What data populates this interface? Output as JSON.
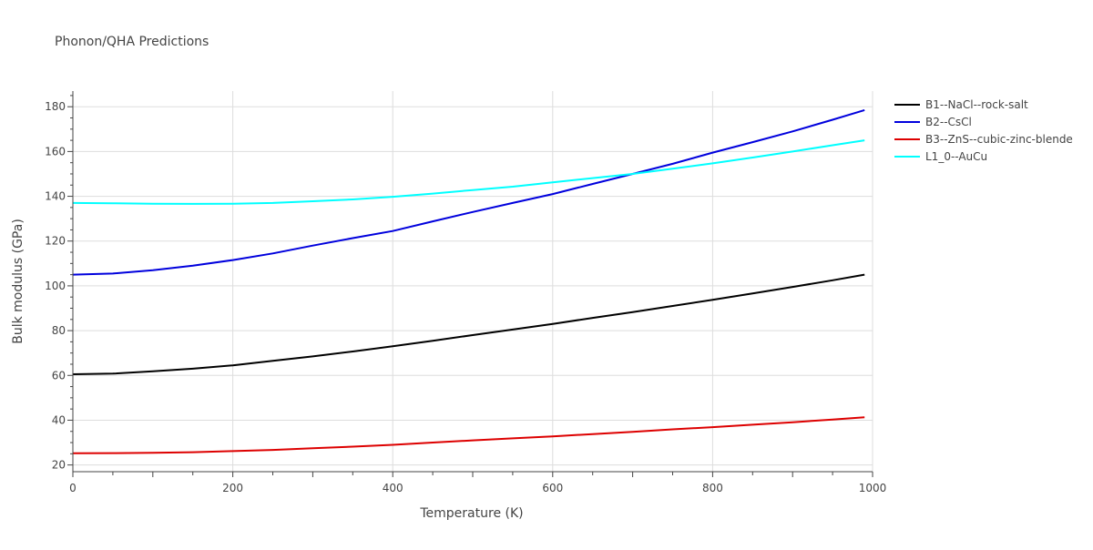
{
  "chart_data": {
    "type": "line",
    "title": "Phonon/QHA Predictions",
    "xlabel": "Temperature (K)",
    "ylabel": "Bulk modulus (GPa)",
    "xlim": [
      0,
      1000
    ],
    "ylim": [
      17,
      187
    ],
    "xticks": [
      0,
      200,
      400,
      600,
      800,
      1000
    ],
    "yticks": [
      20,
      40,
      60,
      80,
      100,
      120,
      140,
      160,
      180
    ],
    "grid": true,
    "legend": "right",
    "x": [
      0,
      50,
      100,
      150,
      200,
      250,
      300,
      350,
      400,
      450,
      500,
      550,
      600,
      650,
      700,
      750,
      800,
      850,
      900,
      950,
      990
    ],
    "series": [
      {
        "name": "B1--NaCl--rock-salt",
        "color": "#000000",
        "values": [
          60.5,
          60.8,
          61.8,
          63.0,
          64.5,
          66.5,
          68.5,
          70.7,
          73.0,
          75.5,
          78.0,
          80.5,
          83.0,
          85.7,
          88.3,
          91.0,
          93.8,
          96.6,
          99.5,
          102.5,
          105.0
        ]
      },
      {
        "name": "B2--CsCl",
        "color": "#0000dd",
        "values": [
          105.0,
          105.5,
          107.0,
          109.0,
          111.5,
          114.5,
          118.0,
          121.3,
          124.5,
          128.8,
          133.0,
          137.0,
          141.0,
          145.5,
          150.0,
          154.5,
          159.5,
          164.2,
          169.0,
          174.2,
          178.5
        ]
      },
      {
        "name": "B3--ZnS--cubic-zinc-blende",
        "color": "#dd0000",
        "values": [
          25.2,
          25.3,
          25.4,
          25.7,
          26.2,
          26.7,
          27.5,
          28.2,
          29.0,
          30.0,
          31.0,
          31.9,
          32.8,
          33.8,
          34.8,
          35.9,
          36.9,
          38.0,
          39.1,
          40.3,
          41.3
        ]
      },
      {
        "name": "L1_0--AuCu",
        "color": "#00ffff",
        "values": [
          137.0,
          136.9,
          136.7,
          136.6,
          136.7,
          137.0,
          137.8,
          138.6,
          139.8,
          141.2,
          142.8,
          144.3,
          146.2,
          148.1,
          150.0,
          152.3,
          154.7,
          157.3,
          160.0,
          162.8,
          165.0
        ]
      }
    ]
  }
}
